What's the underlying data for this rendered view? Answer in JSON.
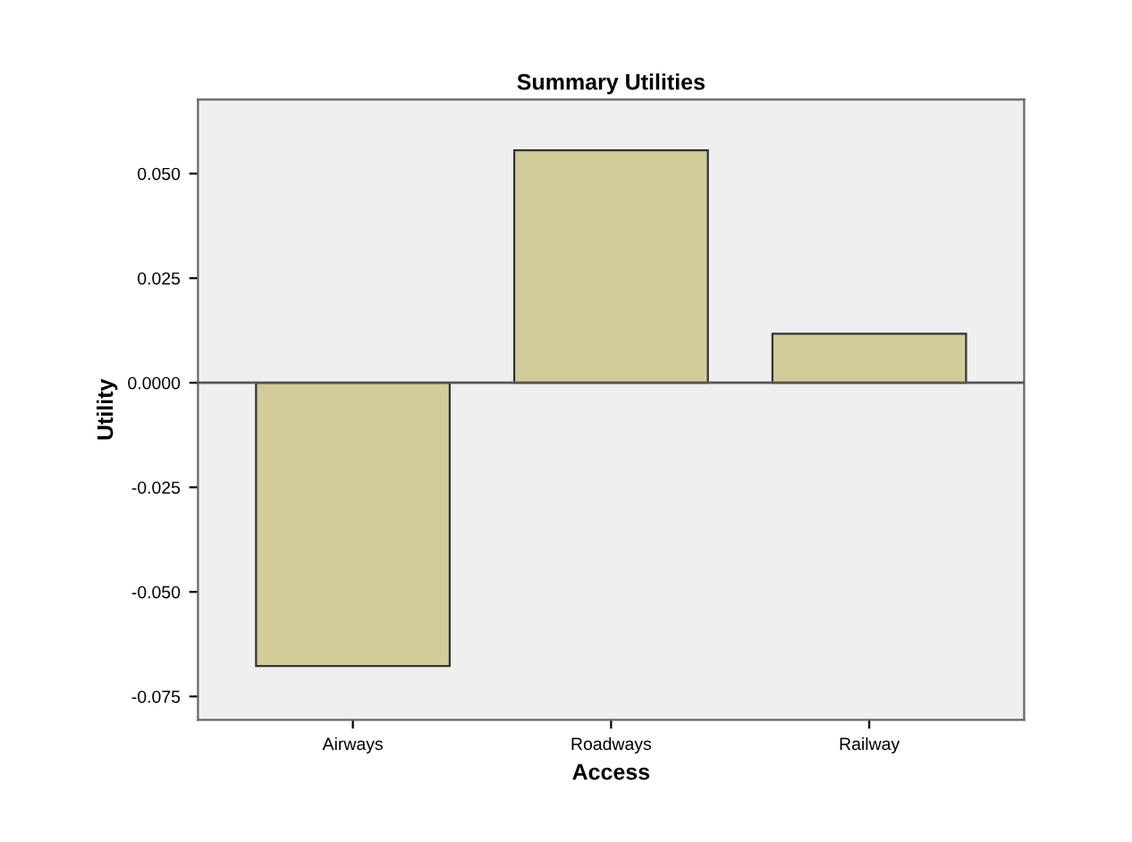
{
  "chart_data": {
    "type": "bar",
    "title": "Summary Utilities",
    "xlabel": "Access",
    "ylabel": "Utility",
    "categories": [
      "Airways",
      "Roadways",
      "Railway"
    ],
    "values": [
      -0.0677,
      0.0556,
      0.0117
    ],
    "color": "#d2cd98",
    "ylim": [
      -0.0806,
      0.0677
    ],
    "yticks": [
      {
        "value": -0.075,
        "label": "-0.075"
      },
      {
        "value": -0.05,
        "label": "-0.050"
      },
      {
        "value": -0.025,
        "label": "-0.025"
      },
      {
        "value": 0,
        "label": "0.0000"
      },
      {
        "value": 0.025,
        "label": "0.025"
      },
      {
        "value": 0.05,
        "label": "0.050"
      }
    ],
    "ref_lines": [
      {
        "axis": "y",
        "value": 0,
        "color": "#555555"
      }
    ],
    "grid": false,
    "legend": false
  }
}
